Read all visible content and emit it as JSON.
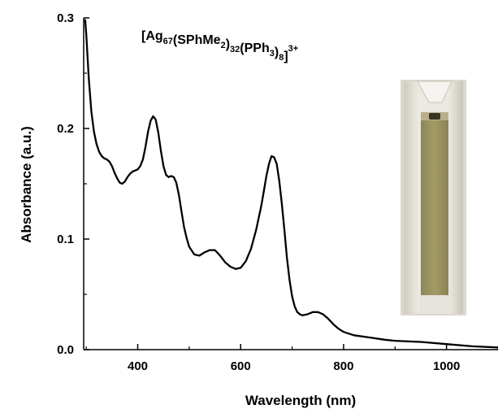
{
  "chart_data": {
    "type": "line",
    "title": "",
    "xlabel": "Wavelength (nm)",
    "ylabel": "Absorbance (a.u.)",
    "xlim": [
      295,
      1100
    ],
    "ylim": [
      0.0,
      0.3
    ],
    "x_ticks": [
      400,
      600,
      800,
      1000
    ],
    "x_tick_labels": [
      "400",
      "600",
      "800",
      "1000"
    ],
    "y_ticks": [
      0.0,
      0.1,
      0.2,
      0.3
    ],
    "y_tick_labels": [
      "0.0",
      "0.1",
      "0.2",
      "0.3"
    ],
    "grid": false,
    "legend": "none",
    "line_color": "#000000",
    "annotation": {
      "text": "[Ag67(SPhMe2)32(PPh3)8]3+",
      "parts": [
        {
          "t": "[Ag",
          "s": "n"
        },
        {
          "t": "67",
          "s": "sub"
        },
        {
          "t": "(SPhMe",
          "s": "n"
        },
        {
          "t": "2",
          "s": "sub"
        },
        {
          "t": ")",
          "s": "n"
        },
        {
          "t": "32",
          "s": "sub"
        },
        {
          "t": "(PPh",
          "s": "n"
        },
        {
          "t": "3",
          "s": "sub"
        },
        {
          "t": ")",
          "s": "n"
        },
        {
          "t": "8",
          "s": "sub"
        },
        {
          "t": "]",
          "s": "n"
        },
        {
          "t": "3+",
          "s": "sup"
        }
      ]
    },
    "inset_image": "cuvette-photo",
    "series": [
      {
        "x": [
          298,
          300,
          305,
          310,
          315,
          320,
          325,
          330,
          335,
          340,
          345,
          350,
          355,
          360,
          365,
          370,
          375,
          380,
          385,
          390,
          395,
          400,
          405,
          410,
          415,
          420,
          425,
          430,
          435,
          440,
          445,
          450,
          455,
          460,
          465,
          470,
          475,
          480,
          485,
          490,
          495,
          500,
          510,
          520,
          530,
          540,
          550,
          560,
          570,
          580,
          590,
          600,
          610,
          620,
          630,
          640,
          645,
          650,
          655,
          660,
          665,
          670,
          675,
          680,
          685,
          690,
          695,
          700,
          705,
          710,
          715,
          720,
          730,
          740,
          750,
          760,
          770,
          780,
          790,
          800,
          820,
          850,
          880,
          900,
          950,
          1000,
          1050,
          1100
        ],
        "y": [
          0.298,
          0.285,
          0.245,
          0.215,
          0.197,
          0.186,
          0.179,
          0.175,
          0.173,
          0.172,
          0.17,
          0.166,
          0.16,
          0.155,
          0.151,
          0.15,
          0.152,
          0.156,
          0.159,
          0.161,
          0.162,
          0.163,
          0.166,
          0.172,
          0.183,
          0.197,
          0.207,
          0.211,
          0.208,
          0.196,
          0.18,
          0.166,
          0.158,
          0.156,
          0.157,
          0.156,
          0.151,
          0.14,
          0.125,
          0.111,
          0.101,
          0.093,
          0.086,
          0.085,
          0.088,
          0.09,
          0.09,
          0.085,
          0.079,
          0.075,
          0.073,
          0.074,
          0.08,
          0.091,
          0.108,
          0.13,
          0.143,
          0.157,
          0.168,
          0.175,
          0.174,
          0.168,
          0.153,
          0.132,
          0.108,
          0.083,
          0.063,
          0.048,
          0.039,
          0.034,
          0.032,
          0.031,
          0.032,
          0.034,
          0.034,
          0.032,
          0.028,
          0.023,
          0.019,
          0.016,
          0.013,
          0.011,
          0.009,
          0.008,
          0.007,
          0.005,
          0.003,
          0.002
        ]
      }
    ]
  }
}
